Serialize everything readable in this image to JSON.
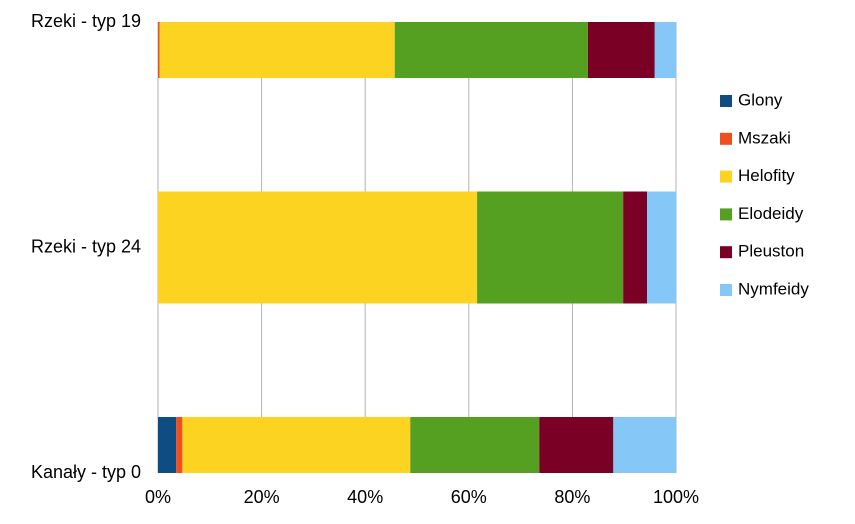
{
  "chart_data": {
    "type": "stacked_barh",
    "categories": [
      "Rzeki - typ 19",
      "Rzeki - typ 24",
      "Kanały - typ 0"
    ],
    "series": [
      {
        "name": "Glony",
        "color": "#0f4c81",
        "values": [
          0,
          0,
          3.5
        ]
      },
      {
        "name": "Mszaki",
        "color": "#f04e1e",
        "values": [
          0.3,
          0,
          1.2
        ]
      },
      {
        "name": "Helofity",
        "color": "#fdd321",
        "values": [
          45.4,
          61.6,
          44.0
        ]
      },
      {
        "name": "Elodeidy",
        "color": "#56a021",
        "values": [
          37.3,
          28.2,
          24.9
        ]
      },
      {
        "name": "Pleuston",
        "color": "#7b0025",
        "values": [
          12.9,
          4.6,
          14.3
        ]
      },
      {
        "name": "Nymfeidy",
        "color": "#85c8f7",
        "values": [
          4.1,
          5.6,
          12.1
        ]
      }
    ],
    "xlim": [
      0,
      100
    ],
    "xticks": [
      {
        "value": 0,
        "label": "0%"
      },
      {
        "value": 20,
        "label": "20%"
      },
      {
        "value": 40,
        "label": "40%"
      },
      {
        "value": 60,
        "label": "60%"
      },
      {
        "value": 80,
        "label": "80%"
      },
      {
        "value": 100,
        "label": "100%"
      }
    ],
    "grid": true,
    "legend": "right"
  }
}
